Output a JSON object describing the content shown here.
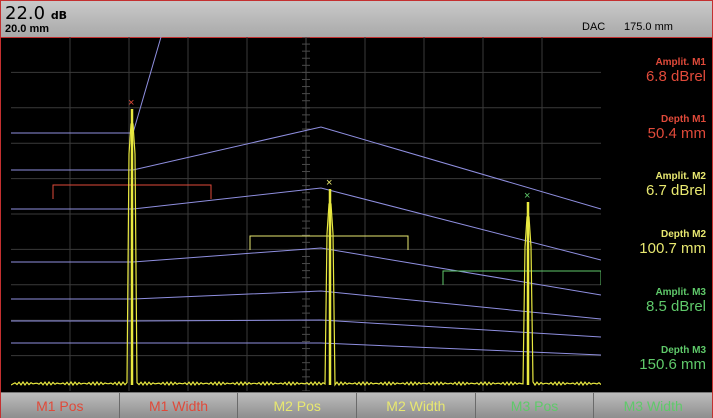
{
  "header": {
    "gain_value": "22.0",
    "gain_unit": "dB",
    "range": "20.0 mm",
    "mode": "DAC",
    "depth": "175.0 mm"
  },
  "readouts": [
    {
      "label": "Amplit. M1",
      "value": "6.8 dBrel",
      "color": "#e04a3a"
    },
    {
      "label": "Depth M1",
      "value": "50.4 mm",
      "color": "#e04a3a"
    },
    {
      "label": "Amplit. M2",
      "value": "6.7 dBrel",
      "color": "#e8e870"
    },
    {
      "label": "Depth M2",
      "value": "100.7 mm",
      "color": "#e8e870"
    },
    {
      "label": "Amplit. M3",
      "value": "8.5 dBrel",
      "color": "#5fc96a"
    },
    {
      "label": "Depth M3",
      "value": "150.6 mm",
      "color": "#5fc96a"
    }
  ],
  "footer": [
    {
      "label": "M1 Pos",
      "color": "#e04a3a"
    },
    {
      "label": "M1 Width",
      "color": "#e04a3a"
    },
    {
      "label": "M2 Pos",
      "color": "#e8e870"
    },
    {
      "label": "M2 Width",
      "color": "#e8e870"
    },
    {
      "label": "M3 Pos",
      "color": "#5fc96a"
    },
    {
      "label": "M3 Width",
      "color": "#5fc96a"
    }
  ],
  "colors": {
    "dac_curve": "#8f8fe0",
    "echo": "#e8e840",
    "grid": "#3a3a3a",
    "m1": "#e04a3a",
    "m2": "#e8e870",
    "m3": "#5fc96a"
  }
}
